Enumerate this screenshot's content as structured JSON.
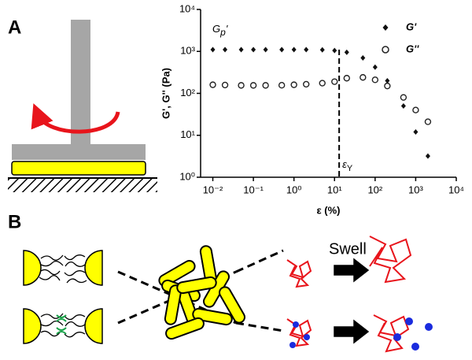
{
  "panels": {
    "a": "A",
    "b": "B"
  },
  "chart_data": {
    "type": "scatter",
    "log_x": true,
    "log_y": true,
    "xlabel": "ε (%)",
    "ylabel": "G', G'' (Pa)",
    "xlim": [
      0.005,
      10000
    ],
    "ylim": [
      1,
      10000
    ],
    "xticks": [
      {
        "value": 0.01,
        "label": "10⁻²"
      },
      {
        "value": 0.1,
        "label": "10⁻¹"
      },
      {
        "value": 1,
        "label": "10⁰"
      },
      {
        "value": 10,
        "label": "10¹"
      },
      {
        "value": 100,
        "label": "10²"
      },
      {
        "value": 1000,
        "label": "10³"
      },
      {
        "value": 10000,
        "label": "10⁴"
      }
    ],
    "yticks": [
      {
        "value": 1,
        "label": "10⁰"
      },
      {
        "value": 10,
        "label": "10¹"
      },
      {
        "value": 100,
        "label": "10²"
      },
      {
        "value": 1000,
        "label": "10³"
      },
      {
        "value": 10000,
        "label": "10⁴"
      }
    ],
    "x": [
      0.01,
      0.02,
      0.05,
      0.1,
      0.2,
      0.5,
      1,
      2,
      5,
      10,
      20,
      50,
      100,
      200,
      500,
      1000,
      2000
    ],
    "series": [
      {
        "name": "G'",
        "marker": "diamond",
        "color": "#111111",
        "values": [
          1100,
          1100,
          1100,
          1100,
          1100,
          1100,
          1100,
          1100,
          1090,
          1050,
          950,
          700,
          420,
          200,
          50,
          12,
          3.2
        ]
      },
      {
        "name": "G''",
        "marker": "open-circle",
        "color": "#222222",
        "values": [
          160,
          158,
          155,
          155,
          155,
          156,
          160,
          165,
          175,
          190,
          230,
          240,
          210,
          150,
          80,
          40,
          21
        ]
      }
    ],
    "legend": "top-right",
    "plateau_label": {
      "symbol": "G",
      "subscript": "p",
      "suffix": "'"
    },
    "yield_line": {
      "x": 13,
      "symbol": "ε",
      "subscript": "Y"
    }
  },
  "diagram": {
    "swell_label": "Swell"
  }
}
